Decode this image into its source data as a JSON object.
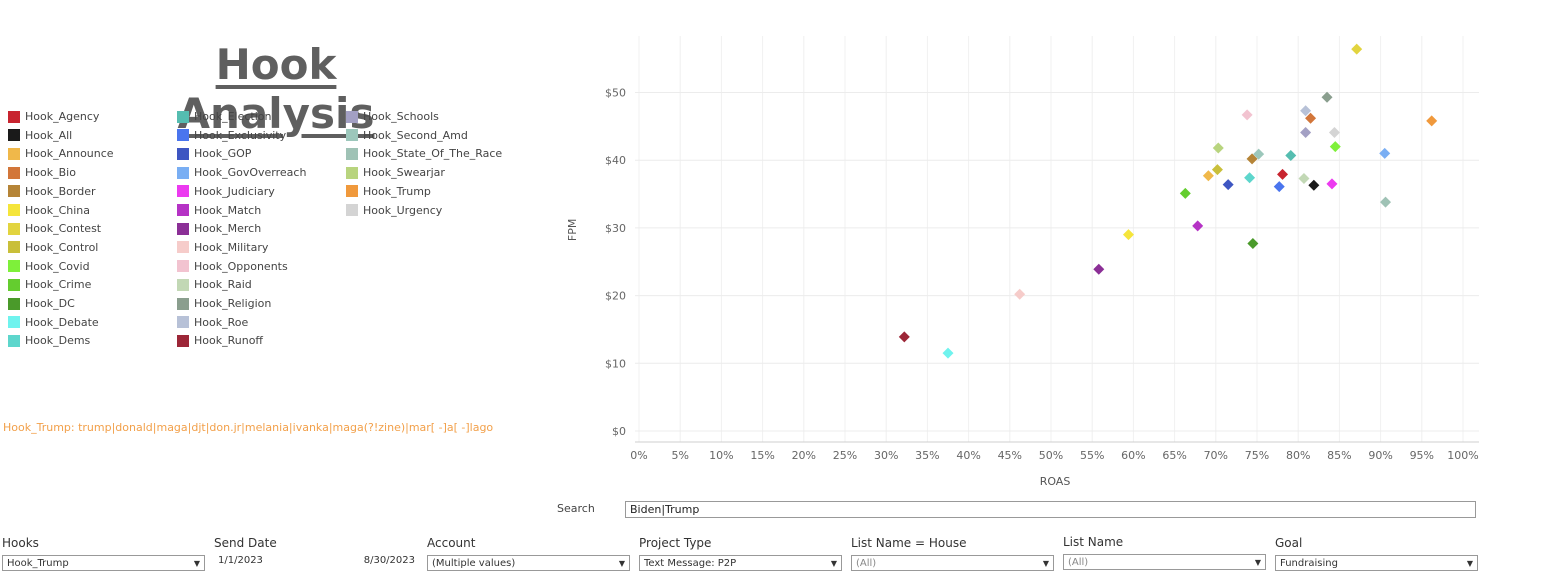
{
  "title": "Hook Analysis",
  "legend": [
    {
      "label": "Hook_Agency",
      "color": "#c8242f"
    },
    {
      "label": "Hook_All",
      "color": "#1a1a1a"
    },
    {
      "label": "Hook_Announce",
      "color": "#f0b84a"
    },
    {
      "label": "Hook_Bio",
      "color": "#d2763a"
    },
    {
      "label": "Hook_Border",
      "color": "#b58437"
    },
    {
      "label": "Hook_China",
      "color": "#f5e53b"
    },
    {
      "label": "Hook_Contest",
      "color": "#e2d43f"
    },
    {
      "label": "Hook_Control",
      "color": "#c9bf3a"
    },
    {
      "label": "Hook_Covid",
      "color": "#7ef03a"
    },
    {
      "label": "Hook_Crime",
      "color": "#64cd2f"
    },
    {
      "label": "Hook_DC",
      "color": "#4a9a2a"
    },
    {
      "label": "Hook_Debate",
      "color": "#6ff3ee"
    },
    {
      "label": "Hook_Dems",
      "color": "#5dd6cc"
    },
    {
      "label": "Hook_Election",
      "color": "#55bdb0"
    },
    {
      "label": "Hook_Exclusivity",
      "color": "#4a75ee"
    },
    {
      "label": "Hook_GOP",
      "color": "#3e56c2"
    },
    {
      "label": "Hook_GovOverreach",
      "color": "#79aef3"
    },
    {
      "label": "Hook_Judiciary",
      "color": "#ec3af0"
    },
    {
      "label": "Hook_Match",
      "color": "#b532c5"
    },
    {
      "label": "Hook_Merch",
      "color": "#8b2f96"
    },
    {
      "label": "Hook_Military",
      "color": "#f6ccca"
    },
    {
      "label": "Hook_Opponents",
      "color": "#f2c3d0"
    },
    {
      "label": "Hook_Raid",
      "color": "#c2d8b5"
    },
    {
      "label": "Hook_Religion",
      "color": "#8a9e8e"
    },
    {
      "label": "Hook_Roe",
      "color": "#b7c1d7"
    },
    {
      "label": "Hook_Runoff",
      "color": "#9c2637"
    },
    {
      "label": "Hook_Schools",
      "color": "#a3a0c4"
    },
    {
      "label": "Hook_Second_Amd",
      "color": "#9cc7bb"
    },
    {
      "label": "Hook_State_Of_The_Race",
      "color": "#9fc2b5"
    },
    {
      "label": "Hook_Swearjar",
      "color": "#b8d47e"
    },
    {
      "label": "Hook_Trump",
      "color": "#f0993c"
    },
    {
      "label": "Hook_Urgency",
      "color": "#d4d4d4"
    }
  ],
  "regex_note": "Hook_Trump: trump|donald|maga|djt|don.jr|melania|ivanka|maga(?!zine)|mar[ -]a[ -]lago",
  "chart_data": {
    "type": "scatter",
    "xlabel": "ROAS",
    "ylabel": "FPM",
    "xlim": [
      0,
      100
    ],
    "ylim": [
      0,
      58
    ],
    "xticks": [
      "0%",
      "5%",
      "10%",
      "15%",
      "20%",
      "25%",
      "30%",
      "35%",
      "40%",
      "45%",
      "50%",
      "55%",
      "60%",
      "65%",
      "70%",
      "75%",
      "80%",
      "85%",
      "90%",
      "95%",
      "100%"
    ],
    "yticks": [
      "$0",
      "$10",
      "$20",
      "$30",
      "$40",
      "$50"
    ],
    "grid": true,
    "marker": "diamond",
    "points": [
      {
        "x": 32.2,
        "y": 13.9,
        "color": "#9c2637"
      },
      {
        "x": 37.5,
        "y": 11.5,
        "color": "#6ff3ee"
      },
      {
        "x": 46.2,
        "y": 20.2,
        "color": "#f6ccca"
      },
      {
        "x": 55.8,
        "y": 23.9,
        "color": "#8b2f96"
      },
      {
        "x": 59.4,
        "y": 29.0,
        "color": "#f5e53b"
      },
      {
        "x": 66.3,
        "y": 35.1,
        "color": "#64cd2f"
      },
      {
        "x": 67.8,
        "y": 30.3,
        "color": "#b532c5"
      },
      {
        "x": 69.1,
        "y": 37.7,
        "color": "#f0b84a"
      },
      {
        "x": 70.2,
        "y": 38.6,
        "color": "#c9bf3a"
      },
      {
        "x": 70.3,
        "y": 41.8,
        "color": "#b8d47e"
      },
      {
        "x": 71.5,
        "y": 36.4,
        "color": "#3e56c2"
      },
      {
        "x": 73.8,
        "y": 46.7,
        "color": "#f2c3d0"
      },
      {
        "x": 74.1,
        "y": 37.4,
        "color": "#5dd6cc"
      },
      {
        "x": 74.4,
        "y": 40.2,
        "color": "#b58437"
      },
      {
        "x": 74.5,
        "y": 27.7,
        "color": "#4a9a2a"
      },
      {
        "x": 75.2,
        "y": 40.9,
        "color": "#9cc7bb"
      },
      {
        "x": 77.7,
        "y": 36.1,
        "color": "#4a75ee"
      },
      {
        "x": 78.1,
        "y": 37.9,
        "color": "#c8242f"
      },
      {
        "x": 79.1,
        "y": 40.7,
        "color": "#55bdb0"
      },
      {
        "x": 80.7,
        "y": 37.3,
        "color": "#c2d8b5"
      },
      {
        "x": 80.9,
        "y": 47.3,
        "color": "#b7c1d7"
      },
      {
        "x": 80.9,
        "y": 44.1,
        "color": "#a3a0c4"
      },
      {
        "x": 81.5,
        "y": 46.2,
        "color": "#d2763a"
      },
      {
        "x": 81.9,
        "y": 36.3,
        "color": "#1a1a1a"
      },
      {
        "x": 83.5,
        "y": 49.3,
        "color": "#8a9e8e"
      },
      {
        "x": 84.1,
        "y": 36.5,
        "color": "#ec3af0"
      },
      {
        "x": 84.4,
        "y": 44.1,
        "color": "#d4d4d4"
      },
      {
        "x": 84.5,
        "y": 42.0,
        "color": "#7ef03a"
      },
      {
        "x": 87.1,
        "y": 56.4,
        "color": "#e2d43f"
      },
      {
        "x": 90.5,
        "y": 41.0,
        "color": "#79aef3"
      },
      {
        "x": 90.6,
        "y": 33.8,
        "color": "#9fc2b5"
      },
      {
        "x": 96.2,
        "y": 45.8,
        "color": "#f0993c"
      }
    ]
  },
  "search": {
    "label": "Search",
    "value": "Biden|Trump"
  },
  "filters": {
    "hooks": {
      "label": "Hooks",
      "value": "Hook_Trump"
    },
    "send_date": {
      "label": "Send Date",
      "start": "1/1/2023",
      "end": "8/30/2023"
    },
    "account": {
      "label": "Account",
      "value": "(Multiple values)"
    },
    "project_type": {
      "label": "Project Type",
      "value": "Text Message: P2P"
    },
    "list_house": {
      "label": "List Name = House",
      "value": "(All)"
    },
    "list_name": {
      "label": "List Name",
      "value": "(All)"
    },
    "goal": {
      "label": "Goal",
      "value": "Fundraising"
    }
  }
}
